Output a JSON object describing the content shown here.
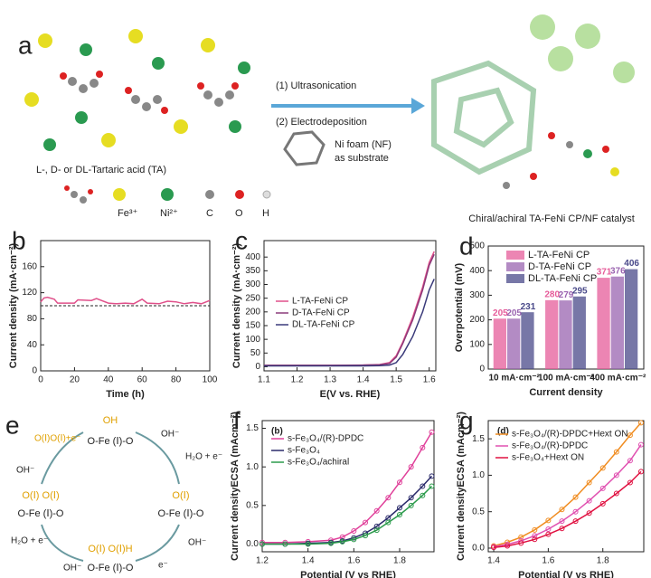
{
  "figure_a": {
    "label": "a",
    "steps": [
      "(1) Ultrasonication",
      "(2) Electrodeposition"
    ],
    "substrate": [
      "Ni foam (NF)",
      "as substrate"
    ],
    "ligand": "L-, D- or DL-Tartaric acid (TA)",
    "legend": [
      "Fe³⁺",
      "Ni²⁺",
      "C",
      "O",
      "H"
    ],
    "product": "Chiral/achiral TA-FeNi CP/NF catalyst"
  },
  "figure_e": {
    "label": "e",
    "states": [
      {
        "top": "OH",
        "bottom": "O-Fe (Ⅰ)-O"
      },
      {
        "top": "O(Ⅰ)",
        "bottom": "O-Fe (Ⅰ)-O"
      },
      {
        "top": "O(Ⅰ) O(Ⅰ)H",
        "bottom": "O-Fe (Ⅰ)-O"
      },
      {
        "top": "O(Ⅰ) O(Ⅰ)",
        "bottom": "O-Fe (Ⅰ)-O"
      }
    ],
    "reagents": [
      "OH⁻",
      "H₂O + e⁻",
      "OH⁻",
      "e⁻",
      "OH⁻",
      "H₂O + e⁻",
      "OH⁻"
    ],
    "release": "O(Ⅰ)O(Ⅰ)+e⁻"
  },
  "chart_data": [
    {
      "type": "line",
      "label": "b",
      "xlabel": "Time (h)",
      "ylabel": "Current density (mA·cm⁻²)",
      "x": [
        0,
        2,
        4,
        8,
        10,
        20,
        22,
        30,
        33,
        40,
        45,
        50,
        55,
        60,
        63,
        70,
        75,
        80,
        85,
        90,
        95,
        100
      ],
      "series": [
        {
          "name": null,
          "color": "#e0508a",
          "values": [
            106,
            112,
            113,
            110,
            104,
            104,
            109,
            108,
            111,
            104,
            103,
            104,
            103,
            110,
            104,
            103,
            107,
            106,
            103,
            105,
            103,
            108
          ]
        }
      ],
      "reference_value": 100,
      "xlim": [
        0,
        100
      ],
      "xticks": [
        0,
        20,
        40,
        60,
        80,
        100
      ],
      "ylim": [
        0,
        200
      ],
      "yticks": [
        0,
        40,
        80,
        120,
        160
      ]
    },
    {
      "type": "line",
      "label": "c",
      "xlabel": "E(V vs. RHE)",
      "ylabel": "Current density (mA·cm⁻²)",
      "x": [
        1.1,
        1.2,
        1.3,
        1.4,
        1.45,
        1.48,
        1.5,
        1.52,
        1.55,
        1.58,
        1.6,
        1.615
      ],
      "series": [
        {
          "name": "L-TA-FeNi CP",
          "color": "#e0508a",
          "values": [
            5,
            5,
            5,
            6,
            8,
            15,
            40,
            90,
            180,
            290,
            380,
            420
          ]
        },
        {
          "name": "D-TA-FeNi CP",
          "color": "#8b3a7a",
          "values": [
            5,
            5,
            5,
            6,
            7,
            12,
            35,
            85,
            170,
            280,
            370,
            410
          ]
        },
        {
          "name": "DL-TA-FeNi CP",
          "color": "#3a3a7a",
          "values": [
            3,
            3,
            3,
            3,
            4,
            6,
            15,
            45,
            110,
            200,
            280,
            320
          ]
        }
      ],
      "xlim": [
        1.1,
        1.62
      ],
      "xticks": [
        1.1,
        1.2,
        1.3,
        1.4,
        1.5,
        1.6
      ],
      "ylim": [
        -15,
        460
      ],
      "yticks": [
        0,
        50,
        100,
        150,
        200,
        250,
        300,
        350,
        400
      ]
    },
    {
      "type": "bar",
      "label": "d",
      "xlabel": "Current density",
      "ylabel": "Overpotential (mV)",
      "categories": [
        "10 mA·cm⁻²",
        "100 mA·cm⁻²",
        "400 mA·cm⁻²"
      ],
      "series": [
        {
          "name": "L-TA-FeNi CP",
          "color": "#e65c9a",
          "values": [
            205,
            280,
            371
          ]
        },
        {
          "name": "D-TA-FeNi CP",
          "color": "#9a64b0",
          "values": [
            205,
            279,
            376
          ]
        },
        {
          "name": "DL-TA-FeNi CP",
          "color": "#4a4a8a",
          "values": [
            231,
            295,
            406
          ]
        }
      ],
      "ylim": [
        0,
        500
      ],
      "yticks": [
        0,
        100,
        200,
        300,
        400,
        500
      ]
    },
    {
      "type": "line",
      "label": "f",
      "annotation": "(b)",
      "xlabel": "Potential (V vs RHE)",
      "ylabel": "Current densityECSA (mAcm⁻²)",
      "x": [
        1.2,
        1.3,
        1.4,
        1.5,
        1.55,
        1.6,
        1.65,
        1.7,
        1.75,
        1.8,
        1.85,
        1.9,
        1.94
      ],
      "series": [
        {
          "name": "s-Fe₃O₄/(R)-DPDC",
          "color": "#e0409a",
          "values": [
            0.02,
            0.02,
            0.03,
            0.05,
            0.09,
            0.17,
            0.28,
            0.43,
            0.6,
            0.8,
            1.0,
            1.25,
            1.45
          ]
        },
        {
          "name": "s-Fe₃O₄",
          "color": "#2a2a6a",
          "values": [
            0,
            0,
            0.01,
            0.02,
            0.04,
            0.08,
            0.14,
            0.23,
            0.34,
            0.47,
            0.6,
            0.75,
            0.88
          ]
        },
        {
          "name": "s-Fe₃O₄/achiral",
          "color": "#2a9a4a",
          "values": [
            0,
            0,
            0,
            0.01,
            0.03,
            0.06,
            0.11,
            0.18,
            0.28,
            0.38,
            0.5,
            0.63,
            0.75
          ]
        }
      ],
      "xlim": [
        1.2,
        1.95
      ],
      "xticks": [
        1.2,
        1.4,
        1.6,
        1.8
      ],
      "ylim": [
        -0.1,
        1.6
      ],
      "yticks": [
        {
          "value": 0,
          "label": "0.0"
        },
        0.5,
        {
          "value": 1,
          "label": "1.0"
        },
        1.5
      ]
    },
    {
      "type": "line",
      "label": "g",
      "annotation": "(d)",
      "xlabel": "Potential (V vs RHE)",
      "ylabel": "Current densityECSA (mAcm⁻²)",
      "x": [
        1.4,
        1.45,
        1.5,
        1.55,
        1.6,
        1.65,
        1.7,
        1.75,
        1.8,
        1.85,
        1.9,
        1.94
      ],
      "series": [
        {
          "name": "s-Fe₃O₄/(R)-DPDC+Hext ON",
          "color": "#f08c20",
          "values": [
            0.03,
            0.08,
            0.15,
            0.25,
            0.38,
            0.53,
            0.7,
            0.9,
            1.1,
            1.32,
            1.55,
            1.72
          ]
        },
        {
          "name": "s-Fe₃O₄/(R)-DPDC",
          "color": "#e050b0",
          "values": [
            0.02,
            0.05,
            0.1,
            0.17,
            0.26,
            0.37,
            0.5,
            0.65,
            0.82,
            1.0,
            1.2,
            1.42
          ]
        },
        {
          "name": "s-Fe₃O₄+Hext ON",
          "color": "#e01040",
          "values": [
            0.01,
            0.03,
            0.07,
            0.12,
            0.19,
            0.27,
            0.37,
            0.48,
            0.61,
            0.75,
            0.9,
            1.05
          ]
        }
      ],
      "xlim": [
        1.38,
        1.95
      ],
      "xticks": [
        1.4,
        1.6,
        1.8
      ],
      "ylim": [
        -0.05,
        1.75
      ],
      "yticks": [
        {
          "value": 0,
          "label": "0.0"
        },
        0.5,
        {
          "value": 1,
          "label": "1.0"
        },
        1.5
      ]
    }
  ]
}
